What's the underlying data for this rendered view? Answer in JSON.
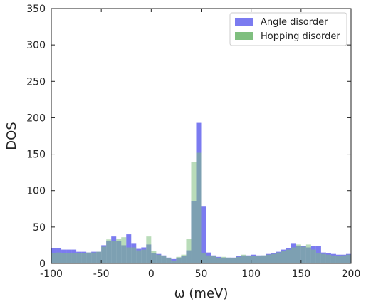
{
  "chart_data": {
    "type": "bar",
    "xlabel": "ω (meV)",
    "ylabel": "DOS",
    "xlim": [
      -100,
      200
    ],
    "ylim": [
      0,
      350
    ],
    "xticks": [
      -100,
      -50,
      0,
      50,
      100,
      150,
      200
    ],
    "yticks": [
      0,
      50,
      100,
      150,
      200,
      250,
      300,
      350
    ],
    "bin_width": 5,
    "bin_starts": [
      -100,
      -95,
      -90,
      -85,
      -80,
      -75,
      -70,
      -65,
      -60,
      -55,
      -50,
      -45,
      -40,
      -35,
      -30,
      -25,
      -20,
      -15,
      -10,
      -5,
      0,
      5,
      10,
      15,
      20,
      25,
      30,
      35,
      40,
      45,
      50,
      55,
      60,
      65,
      70,
      75,
      80,
      85,
      90,
      95,
      100,
      105,
      110,
      115,
      120,
      125,
      130,
      135,
      140,
      145,
      150,
      155,
      160,
      165,
      170,
      175,
      180,
      185,
      190,
      195
    ],
    "legend_position": "top-right",
    "grid": false,
    "series": [
      {
        "name": "Angle disorder",
        "color": "#7b7bf0",
        "values": [
          21,
          21,
          19,
          19,
          19,
          16,
          16,
          15,
          16,
          16,
          25,
          31,
          37,
          31,
          25,
          40,
          27,
          20,
          22,
          26,
          14,
          13,
          11,
          8,
          6,
          8,
          10,
          18,
          86,
          193,
          78,
          15,
          11,
          9,
          8,
          8,
          8,
          10,
          11,
          11,
          12,
          11,
          11,
          13,
          14,
          16,
          19,
          21,
          27,
          24,
          24,
          22,
          24,
          24,
          15,
          14,
          13,
          12,
          12,
          13
        ],
        "notes": ""
      },
      {
        "name": "Hopping disorder",
        "color": "#7fbf7f",
        "values": [
          14,
          15,
          14,
          14,
          14,
          14,
          14,
          15,
          15,
          16,
          23,
          33,
          31,
          34,
          36,
          22,
          22,
          18,
          19,
          37,
          17,
          12,
          10,
          7,
          4,
          9,
          12,
          34,
          139,
          152,
          14,
          11,
          10,
          8,
          9,
          8,
          7,
          9,
          12,
          10,
          10,
          10,
          11,
          12,
          13,
          15,
          17,
          19,
          22,
          26,
          23,
          26,
          19,
          14,
          13,
          12,
          11,
          10,
          11,
          12
        ]
      }
    ]
  }
}
